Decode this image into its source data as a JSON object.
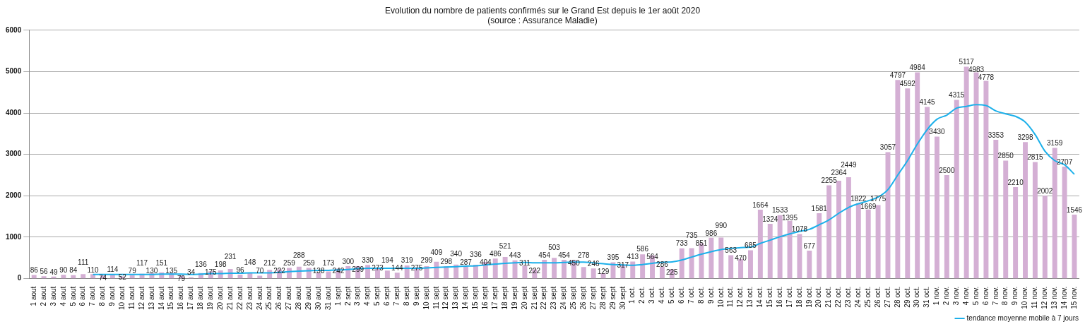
{
  "chart_data": {
    "type": "bar",
    "title": "Evolution du nombre de patients confirmés sur le Grand Est depuis le 1er août 2020",
    "subtitle": "(source : Assurance Maladie)",
    "categories": [
      "1 aout",
      "2 aout",
      "3 aout",
      "4 aout",
      "5 aout",
      "6 aout",
      "7 aout",
      "8 aout",
      "9 aout",
      "10 aout",
      "11 aout",
      "12 aout",
      "13 aout",
      "14 aout",
      "15 aout",
      "16 aout",
      "17 aout",
      "18 aout",
      "19 aout",
      "20 aout",
      "21 aout",
      "22 aout",
      "23 aout",
      "24 aout",
      "25 aout",
      "26 aout",
      "27 aout",
      "28 aout",
      "29 aout",
      "30 aout",
      "31 aout",
      "1 sept",
      "2 sept",
      "3 sept",
      "4 sept",
      "5 sept",
      "6 sept",
      "7 sept",
      "8 sept",
      "9 sept",
      "10 sept",
      "11 sept",
      "12 sept",
      "13 sept",
      "14 sept",
      "15 sept",
      "16 sept",
      "17 sept",
      "18 sept",
      "19 sept",
      "20 sept",
      "21 sept",
      "22 sept",
      "23 sept",
      "24 sept",
      "25 sept",
      "26 sept",
      "27 sept",
      "28 sept",
      "29 sept",
      "30 sept",
      "1 oct.",
      "2 oct.",
      "3 oct.",
      "4 oct.",
      "5 oct.",
      "6 oct.",
      "7 oct.",
      "8 oct.",
      "9 oct.",
      "10 oct.",
      "11 oct.",
      "12 oct.",
      "13 oct.",
      "14 oct.",
      "15 oct.",
      "16 oct.",
      "17 oct.",
      "18 oct.",
      "19 oct.",
      "20 oct.",
      "21 oct.",
      "22 oct.",
      "23 oct.",
      "24 oct.",
      "25 oct.",
      "26 oct.",
      "27 oct.",
      "28 oct.",
      "29 oct.",
      "30 oct.",
      "31 oct.",
      "1 nov.",
      "2 nov.",
      "3 nov.",
      "4 nov.",
      "5 nov.",
      "6 nov.",
      "7 nov.",
      "8 nov.",
      "9 nov.",
      "10 nov.",
      "11 nov.",
      "12 nov.",
      "13 nov.",
      "14 nov.",
      "15 nov."
    ],
    "series": [
      {
        "color": "#d4afd4",
        "value_labels": [
          "86",
          "56",
          "49",
          "90",
          "84",
          "111",
          "110",
          "74",
          "114",
          "52",
          "79",
          "117",
          "130",
          "151",
          "135",
          "79",
          "34",
          "136",
          "175",
          "198",
          "231",
          "96",
          "148",
          "70",
          "212",
          "222",
          "259",
          "288",
          "259",
          "138",
          "173",
          "242",
          "300",
          "299",
          "330",
          "273",
          "194",
          "144",
          "319",
          "275",
          "299",
          "409",
          "298",
          "340",
          "287",
          "336",
          "404",
          "486",
          "521",
          "443",
          "311",
          "222",
          "454",
          "503",
          "454",
          "450",
          "278",
          "246",
          "129",
          "395",
          "317",
          "413",
          "586",
          "564",
          "286",
          "225",
          "733",
          "735",
          "851",
          "986",
          "990",
          "563",
          "470",
          "685",
          "1664",
          "1324",
          "1533",
          "1395",
          "1078",
          "677",
          "1581",
          "2255",
          "2364",
          "2449",
          "1822",
          "1669",
          "1775",
          "3057",
          "4797",
          "4592",
          "4984",
          "4145",
          "3430",
          "2500",
          "4315",
          "5117",
          "4983",
          "4778",
          "3353",
          "2850",
          "2210",
          "3298",
          "2815",
          "2002",
          "3159",
          "2707",
          "1546"
        ],
        "values": [
          86,
          56,
          49,
          90,
          84,
          111,
          110,
          74,
          114,
          52,
          79,
          117,
          130,
          151,
          135,
          79,
          34,
          136,
          175,
          198,
          231,
          96,
          148,
          70,
          212,
          222,
          259,
          288,
          259,
          138,
          173,
          242,
          300,
          299,
          330,
          273,
          194,
          144,
          319,
          275,
          299,
          409,
          298,
          340,
          287,
          336,
          404,
          486,
          521,
          443,
          311,
          222,
          454,
          503,
          454,
          450,
          278,
          246,
          129,
          395,
          317,
          413,
          586,
          564,
          286,
          225,
          733,
          735,
          851,
          986,
          990,
          563,
          470,
          685,
          1664,
          1324,
          1533,
          1395,
          1078,
          677,
          1581,
          2255,
          2364,
          2449,
          1822,
          1669,
          1775,
          3057,
          4797,
          4592,
          4984,
          4145,
          3430,
          2500,
          4315,
          5117,
          4983,
          4778,
          3353,
          2850,
          2210,
          3298,
          2815,
          2002,
          3159,
          2707,
          1546
        ]
      },
      {
        "type": "line",
        "name": "tendance moyenne mobile à 7 jours",
        "color": "#1cb0ea",
        "values": [
          null,
          null,
          null,
          null,
          null,
          null,
          100,
          100,
          100,
          100,
          100,
          100,
          100,
          110,
          110,
          110,
          100,
          110,
          120,
          120,
          130,
          130,
          140,
          140,
          140,
          150,
          170,
          180,
          190,
          200,
          200,
          210,
          220,
          240,
          250,
          250,
          250,
          250,
          250,
          250,
          260,
          270,
          280,
          290,
          300,
          310,
          330,
          350,
          370,
          380,
          390,
          380,
          380,
          380,
          390,
          400,
          400,
          380,
          360,
          340,
          330,
          320,
          340,
          370,
          395,
          405,
          450,
          520,
          590,
          650,
          700,
          730,
          750,
          760,
          850,
          930,
          1010,
          1080,
          1140,
          1190,
          1300,
          1420,
          1580,
          1720,
          1810,
          1880,
          1970,
          2150,
          2500,
          2850,
          3250,
          3600,
          3850,
          3950,
          4120,
          4160,
          4200,
          4180,
          4050,
          3980,
          3920,
          3780,
          3480,
          3080,
          2850,
          2750,
          2520
        ]
      }
    ],
    "ylim": [
      0,
      6000
    ],
    "yticks": [
      0,
      1000,
      2000,
      3000,
      4000,
      5000,
      6000
    ],
    "grid": "y",
    "legend": "bottom right",
    "marker": "none"
  }
}
